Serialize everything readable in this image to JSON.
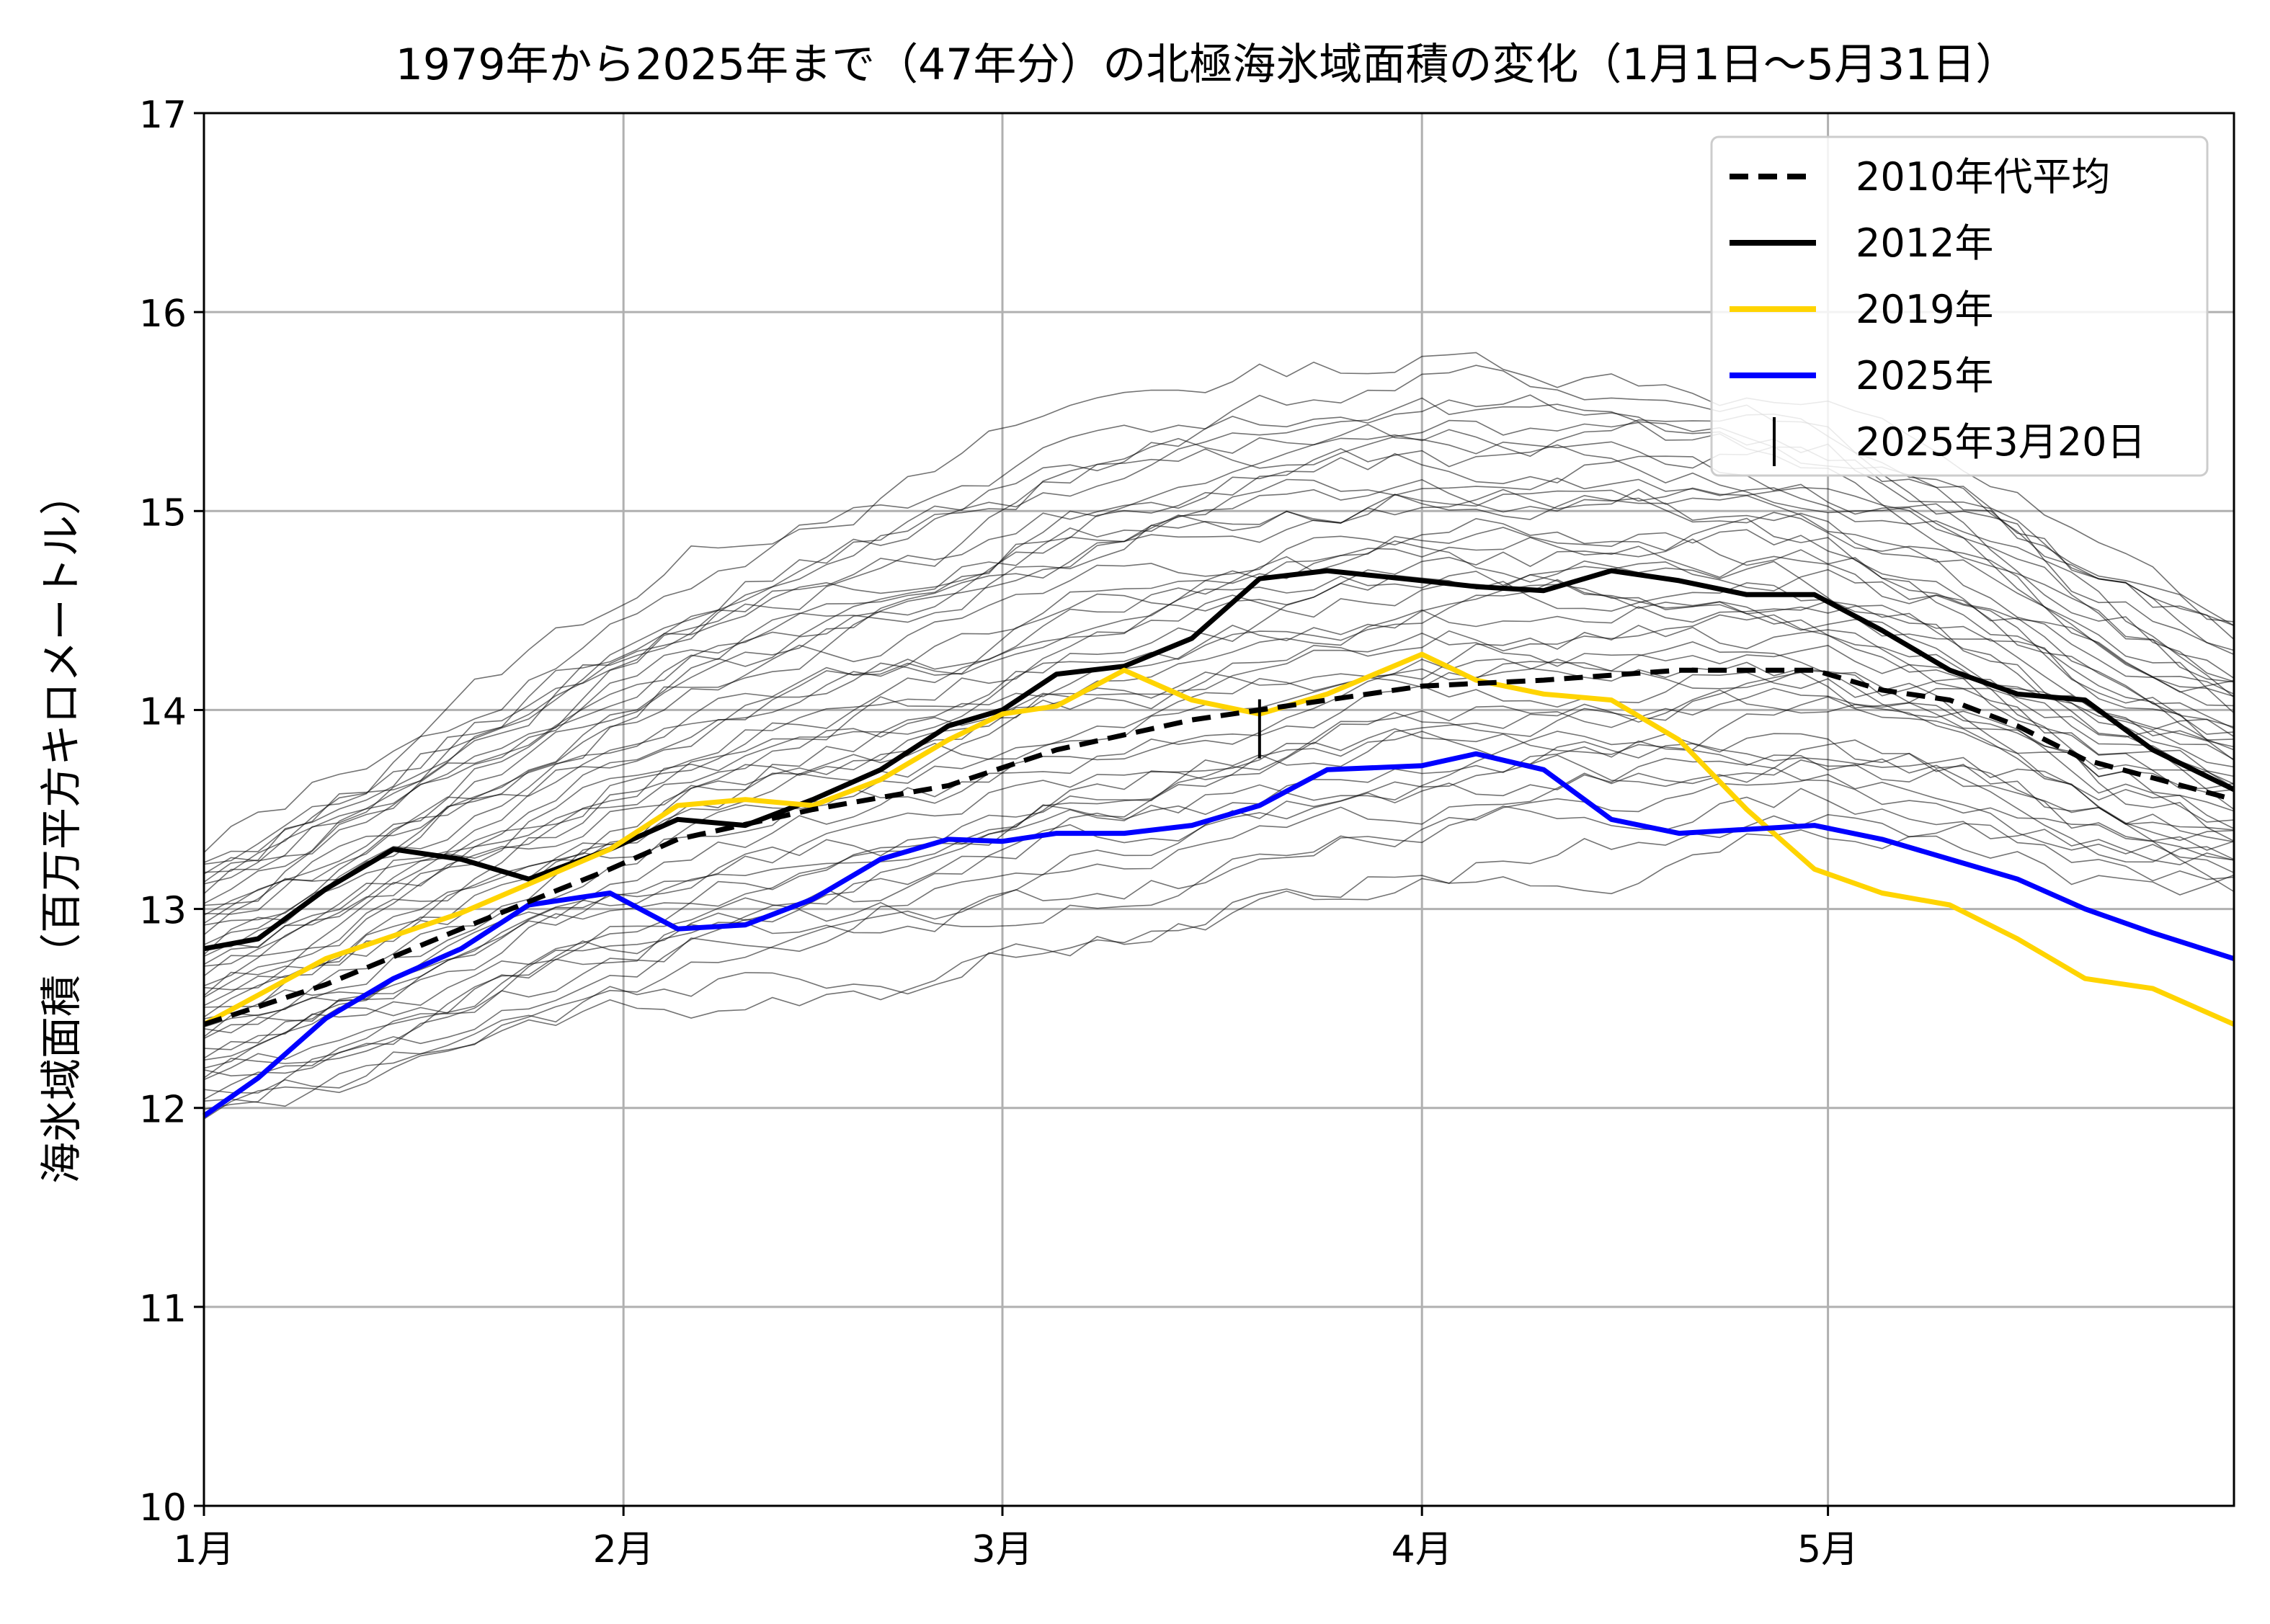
{
  "chart_data": {
    "type": "line",
    "title": "1979年から2025年まで（47年分）の北極海氷域面積の変化（1月1日～5月31日）",
    "xlabel": "",
    "ylabel": "海氷域面積（百万平方キロメートル）",
    "xlim": [
      "01-01",
      "05-31"
    ],
    "ylim": [
      10,
      17
    ],
    "y_ticks": [
      10,
      11,
      12,
      13,
      14,
      15,
      16,
      17
    ],
    "x_ticks": [
      {
        "date": "01-01",
        "label": "1月"
      },
      {
        "date": "02-01",
        "label": "2月"
      },
      {
        "date": "03-01",
        "label": "3月"
      },
      {
        "date": "04-01",
        "label": "4月"
      },
      {
        "date": "05-01",
        "label": "5月"
      }
    ],
    "grid": true,
    "legend_position": "top-right",
    "background_series_style": {
      "color": "#000000",
      "opacity": 0.55,
      "note": "46本の過去年の細線（凡例なし）"
    },
    "series": [
      {
        "name": "2010年代平均",
        "color": "#000000",
        "style": "dashed",
        "x": [
          "01-01",
          "01-10",
          "01-20",
          "01-31",
          "02-05",
          "02-15",
          "02-25",
          "03-05",
          "03-15",
          "03-25",
          "04-01",
          "04-10",
          "04-20",
          "04-30",
          "05-05",
          "05-10",
          "05-15",
          "05-20",
          "05-31"
        ],
        "y": [
          12.42,
          12.62,
          12.9,
          13.2,
          13.35,
          13.5,
          13.62,
          13.8,
          13.95,
          14.05,
          14.12,
          14.15,
          14.2,
          14.2,
          14.1,
          14.05,
          13.92,
          13.75,
          13.55
        ]
      },
      {
        "name": "2012年",
        "color": "#000000",
        "style": "solid",
        "x": [
          "01-01",
          "01-05",
          "01-10",
          "01-15",
          "01-20",
          "01-25",
          "01-31",
          "02-05",
          "02-10",
          "02-15",
          "02-20",
          "02-25",
          "03-01",
          "03-05",
          "03-10",
          "03-15",
          "03-20",
          "03-25",
          "04-01",
          "04-05",
          "04-10",
          "04-15",
          "04-20",
          "04-25",
          "04-30",
          "05-05",
          "05-10",
          "05-15",
          "05-20",
          "05-25",
          "05-31"
        ],
        "y": [
          12.8,
          12.85,
          13.1,
          13.3,
          13.25,
          13.15,
          13.3,
          13.45,
          13.42,
          13.55,
          13.7,
          13.92,
          14.0,
          14.18,
          14.22,
          14.36,
          14.66,
          14.7,
          14.65,
          14.62,
          14.6,
          14.7,
          14.65,
          14.58,
          14.58,
          14.4,
          14.2,
          14.08,
          14.05,
          13.8,
          13.6
        ]
      },
      {
        "name": "2019年",
        "color": "#ffd400",
        "style": "solid",
        "x": [
          "01-01",
          "01-10",
          "01-20",
          "01-31",
          "02-05",
          "02-10",
          "02-15",
          "02-20",
          "02-25",
          "03-01",
          "03-05",
          "03-10",
          "03-15",
          "03-20",
          "03-25",
          "04-01",
          "04-05",
          "04-10",
          "04-15",
          "04-20",
          "04-25",
          "04-30",
          "05-05",
          "05-10",
          "05-15",
          "05-20",
          "05-25",
          "05-31"
        ],
        "y": [
          12.42,
          12.75,
          12.98,
          13.3,
          13.52,
          13.55,
          13.52,
          13.65,
          13.85,
          13.98,
          14.02,
          14.2,
          14.05,
          13.98,
          14.08,
          14.28,
          14.15,
          14.08,
          14.05,
          13.85,
          13.5,
          13.2,
          13.08,
          13.02,
          12.85,
          12.65,
          12.6,
          12.42
        ]
      },
      {
        "name": "2025年",
        "color": "#0000ff",
        "style": "solid",
        "x": [
          "01-01",
          "01-05",
          "01-10",
          "01-15",
          "01-20",
          "01-25",
          "01-31",
          "02-05",
          "02-10",
          "02-15",
          "02-20",
          "02-25",
          "03-01",
          "03-05",
          "03-10",
          "03-15",
          "03-20",
          "03-25",
          "04-01",
          "04-05",
          "04-10",
          "04-15",
          "04-20",
          "04-25",
          "04-30",
          "05-05",
          "05-10",
          "05-15",
          "05-20",
          "05-25",
          "05-31"
        ],
        "y": [
          11.96,
          12.15,
          12.45,
          12.65,
          12.8,
          13.02,
          13.08,
          12.9,
          12.92,
          13.05,
          13.25,
          13.35,
          13.34,
          13.38,
          13.38,
          13.42,
          13.52,
          13.7,
          13.72,
          13.78,
          13.7,
          13.45,
          13.38,
          13.4,
          13.42,
          13.35,
          13.25,
          13.15,
          13.0,
          12.88,
          12.75
        ]
      }
    ],
    "marker": {
      "name": "2025年3月20日",
      "x": "03-20",
      "y": 13.8
    },
    "legend": [
      {
        "label": "2010年代平均",
        "color": "#000000",
        "style": "dashed"
      },
      {
        "label": "2012年",
        "color": "#000000",
        "style": "solid"
      },
      {
        "label": "2019年",
        "color": "#ffd400",
        "style": "solid"
      },
      {
        "label": "2025年",
        "color": "#0000ff",
        "style": "solid"
      },
      {
        "label": "2025年3月20日",
        "color": "#000000",
        "style": "tick"
      }
    ]
  }
}
